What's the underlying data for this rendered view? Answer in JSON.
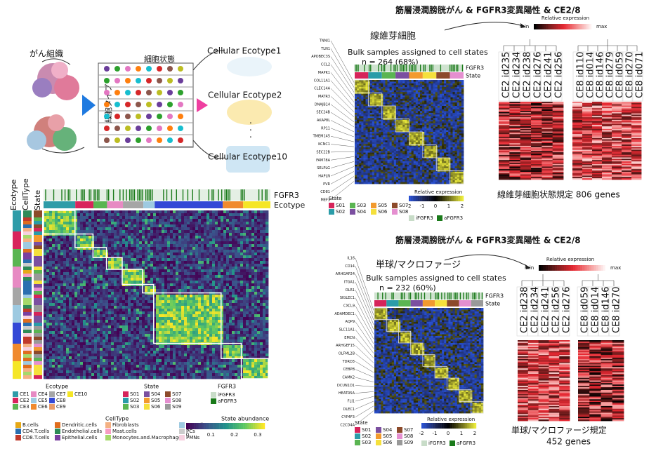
{
  "overview": {
    "tissue": "がん組織",
    "cell_states": "細胞状態",
    "cell_type": "細胞タイプ",
    "ecotypes": [
      "Cellular Ecotype1",
      "Cellular Ecotype2",
      "Cellular Ecotype10"
    ]
  },
  "ecotype_map": {
    "side_labels": [
      "Ecotype",
      "CellType",
      "State"
    ],
    "track_labels": [
      "FGFR3",
      "Ecotype"
    ],
    "ecotype_legend": {
      "title": "Ecotype",
      "items": [
        {
          "name": "CE1",
          "color": "#2e9ca8"
        },
        {
          "name": "CE2",
          "color": "#d8245c"
        },
        {
          "name": "CE3",
          "color": "#5ab552"
        },
        {
          "name": "CE4",
          "color": "#e78ac3"
        },
        {
          "name": "CE5",
          "color": "#9ecae1"
        },
        {
          "name": "CE6",
          "color": "#f08a2e"
        },
        {
          "name": "CE7",
          "color": "#a6a6a6"
        },
        {
          "name": "CE8",
          "color": "#3348d6"
        },
        {
          "name": "CE9",
          "color": "#e89a6a"
        },
        {
          "name": "CE10",
          "color": "#f5e626"
        }
      ]
    },
    "state_legend": {
      "title": "State",
      "items": [
        {
          "name": "S01",
          "color": "#d6245a"
        },
        {
          "name": "S02",
          "color": "#2a9ca8"
        },
        {
          "name": "S03",
          "color": "#5ab552"
        },
        {
          "name": "S04",
          "color": "#7b4fa0"
        },
        {
          "name": "S05",
          "color": "#f29a2e"
        },
        {
          "name": "S06",
          "color": "#f5e03c"
        },
        {
          "name": "S07",
          "color": "#8c4a2a"
        },
        {
          "name": "S08",
          "color": "#e58fd0"
        },
        {
          "name": "S09",
          "color": "#999999"
        }
      ]
    },
    "fgfr3_legend": {
      "title": "FGFR3",
      "items": [
        {
          "name": "iFGFR3",
          "color": "#c8dcc8"
        },
        {
          "name": "aFGFR3",
          "color": "#1a7a1a"
        }
      ]
    },
    "celltype_legend": {
      "title": "CellType",
      "items": [
        {
          "name": "B.cells",
          "color": "#e6a817"
        },
        {
          "name": "CD4.T.cells",
          "color": "#2a6fb0"
        },
        {
          "name": "CD8.T.cells",
          "color": "#c0392b"
        },
        {
          "name": "Dendritic.cells",
          "color": "#e06d1d"
        },
        {
          "name": "Endothelial.cells",
          "color": "#2e8b57"
        },
        {
          "name": "Epithelial.cells",
          "color": "#7a3fa0"
        },
        {
          "name": "Fibroblasts",
          "color": "#f4b183"
        },
        {
          "name": "Mast.cells",
          "color": "#f79cc2"
        },
        {
          "name": "Monocytes.and.Macrophages",
          "color": "#a6d96a"
        },
        {
          "name": "NK.cells",
          "color": "#9ecae1"
        },
        {
          "name": "PCs",
          "color": "#cccccc"
        },
        {
          "name": "PMNs",
          "color": "#f6d1e0"
        }
      ]
    },
    "abundance_legend": {
      "title": "State abundance",
      "ticks": [
        0,
        0.1,
        0.2,
        0.3
      ]
    }
  },
  "fibroblast": {
    "name": "線維芽細胞",
    "subtitle": "Bulk samples assigned to cell states",
    "n": "n = 264 (68%)",
    "track_labels": [
      "FGFR3",
      "State"
    ],
    "genes": [
      "TNNI1",
      "TLN1",
      "APOBEC3S",
      "CCL2",
      "MAPK1",
      "COL11A1",
      "CLEC14A",
      "MATR3",
      "DNAJB14",
      "SEC24B",
      "AKAP8L",
      "RP11",
      "TMEM145",
      "KCNC1",
      "SEC22B",
      "FAM78A",
      "SELPLG",
      "HAPLN",
      "PVR",
      "CD81",
      "MEF3"
    ],
    "state_title": "State",
    "states": [
      "S01",
      "S02",
      "S03",
      "S04",
      "S05",
      "S06",
      "S07",
      "S08"
    ],
    "expr_title": "Relative expression",
    "expr_ticks": [
      -2,
      -1,
      0,
      1,
      2
    ],
    "fgfr3": [
      "iFGFR3",
      "aFGFR3"
    ]
  },
  "fibroblast_cohort": {
    "title": "筋層浸潤膀胱がん & FGFR3変異陽性 & CE2/8",
    "scale": [
      "min",
      "Relative expression",
      "max"
    ],
    "samples": [
      "CE2 id235",
      "CE2 id234",
      "CE2 id238",
      "CE2 id276",
      "CE2 id241",
      "CE2 id256",
      "CE8 id110",
      "CE8 id014",
      "CE8 id146",
      "CE8 id279",
      "CE8 id059",
      "CE8 id270",
      "CE8 id071"
    ],
    "caption": "線維芽細胞状態規定 806 genes"
  },
  "monocyte": {
    "name": "単球/マクロファージ",
    "subtitle": "Bulk samples assigned to cell states",
    "n": "n = 232 (60%)",
    "track_labels": [
      "FGFR3",
      "State"
    ],
    "genes": [
      "IL16",
      "CD14",
      "ARHGAP24",
      "ITGA1",
      "OLR1",
      "SIGLEC1",
      "CXCL9",
      "ADAMDEC1",
      "AQP9",
      "SLC11A1",
      "EMCN",
      "ARHGEF15",
      "OLFML2B",
      "TDRD3",
      "CEBPB",
      "CAMK2",
      "DCUN1D1",
      "HEATR5A",
      "FLI1",
      "DLEC1",
      "CYP4F3",
      "C2CD4A"
    ],
    "state_title": "State",
    "states": [
      "S01",
      "S02",
      "S03",
      "S04",
      "S05",
      "S06",
      "S07",
      "S08",
      "S09"
    ],
    "expr_title": "Relative expression",
    "expr_ticks": [
      -2,
      -1,
      0,
      1,
      2
    ],
    "fgfr3": [
      "iFGFR3",
      "aFGFR3"
    ]
  },
  "monocyte_cohort": {
    "title": "筋層浸潤膀胱がん & FGFR3変異陽性 & CE2/8",
    "scale": [
      "min",
      "Relative expression",
      "max"
    ],
    "samples": [
      "CE2 id238",
      "CE2 id234",
      "CE2 id241",
      "CE2 id256",
      "CE2 id276",
      "CE8 id059",
      "CE8 id014",
      "CE8 id146",
      "CE8 id270"
    ],
    "caption": [
      "単球/マクロファージ規定",
      "452 genes"
    ]
  }
}
